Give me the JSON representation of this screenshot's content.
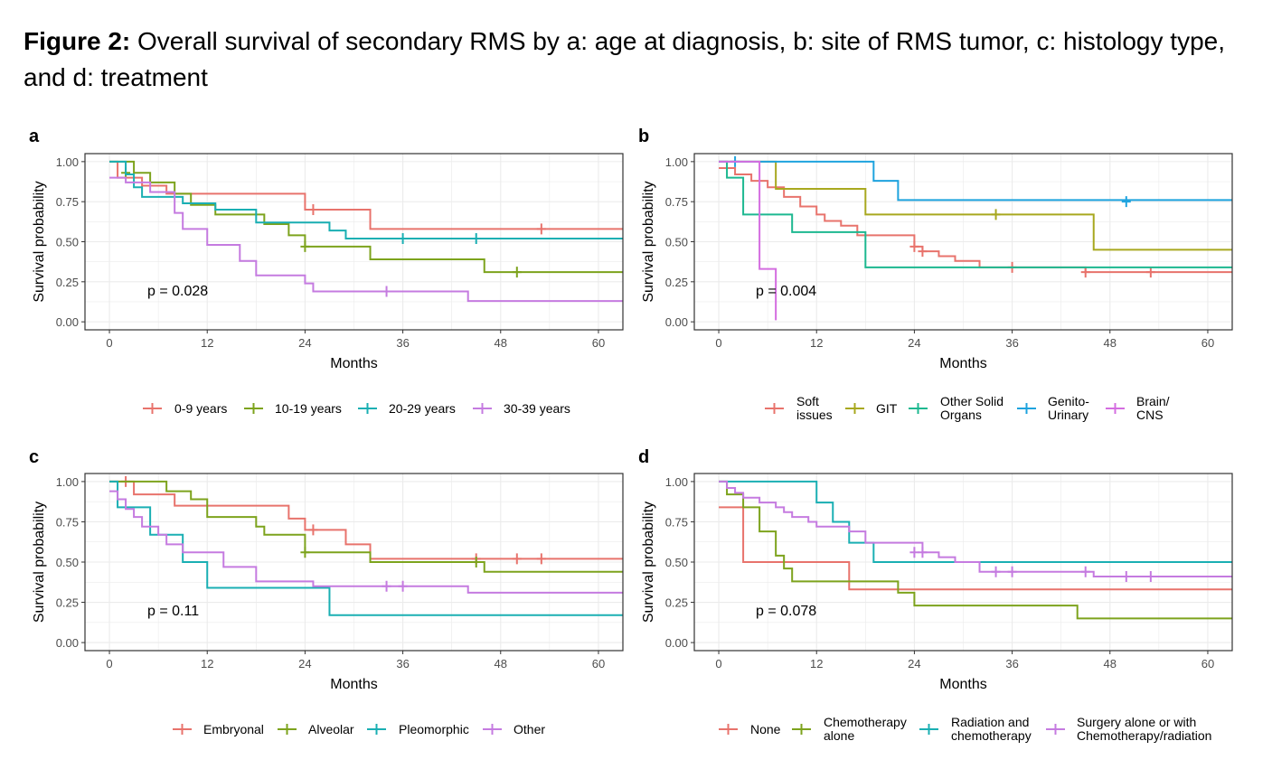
{
  "caption": {
    "label": "Figure 2:",
    "text": " Overall survival of secondary RMS by a: age at diagnosis, b: site of RMS tumor, c: histology type, and d: treatment"
  },
  "chart_data": [
    {
      "type": "line",
      "panel": "a",
      "xlabel": "Months",
      "ylabel": "Survival probability",
      "xlim": [
        -3,
        63
      ],
      "ylim": [
        -0.05,
        1.05
      ],
      "xticks": [
        "0",
        "12",
        "24",
        "36",
        "48",
        "60"
      ],
      "yticks": [
        "0.00",
        "0.25",
        "0.50",
        "0.75",
        "1.00"
      ],
      "grid": true,
      "pvalue": "p = 0.028",
      "legend_position": "bottom",
      "series": [
        {
          "name": "0-9 years",
          "color": "#E8736C",
          "steps": [
            [
              0,
              1.0
            ],
            [
              1,
              0.9
            ],
            [
              4,
              0.85
            ],
            [
              7,
              0.8
            ],
            [
              24,
              0.7
            ],
            [
              32,
              0.58
            ],
            [
              63,
              0.58
            ]
          ],
          "censor": [
            [
              25,
              0.7
            ],
            [
              53,
              0.58
            ]
          ]
        },
        {
          "name": "10-19 years",
          "color": "#7DA31D",
          "steps": [
            [
              0,
              1.0
            ],
            [
              3,
              0.93
            ],
            [
              5,
              0.87
            ],
            [
              8,
              0.8
            ],
            [
              10,
              0.73
            ],
            [
              13,
              0.67
            ],
            [
              19,
              0.61
            ],
            [
              22,
              0.54
            ],
            [
              24,
              0.47
            ],
            [
              32,
              0.39
            ],
            [
              46,
              0.31
            ],
            [
              63,
              0.31
            ]
          ],
          "censor": [
            [
              2,
              0.93
            ],
            [
              24,
              0.47
            ],
            [
              50,
              0.31
            ]
          ]
        },
        {
          "name": "20-29 years",
          "color": "#1AAFB3",
          "steps": [
            [
              0,
              1.0
            ],
            [
              2,
              0.92
            ],
            [
              3,
              0.84
            ],
            [
              4,
              0.78
            ],
            [
              8,
              0.78
            ],
            [
              9,
              0.74
            ],
            [
              13,
              0.7
            ],
            [
              18,
              0.62
            ],
            [
              27,
              0.57
            ],
            [
              29,
              0.52
            ],
            [
              63,
              0.52
            ]
          ],
          "censor": [
            [
              36,
              0.52
            ],
            [
              45,
              0.52
            ]
          ]
        },
        {
          "name": "30-39 years",
          "color": "#C57BE0",
          "steps": [
            [
              0,
              0.9
            ],
            [
              2,
              0.87
            ],
            [
              5,
              0.81
            ],
            [
              8,
              0.68
            ],
            [
              9,
              0.58
            ],
            [
              12,
              0.48
            ],
            [
              16,
              0.38
            ],
            [
              18,
              0.29
            ],
            [
              24,
              0.24
            ],
            [
              25,
              0.19
            ],
            [
              44,
              0.13
            ],
            [
              63,
              0.13
            ]
          ],
          "censor": [
            [
              34,
              0.19
            ]
          ]
        }
      ]
    },
    {
      "type": "line",
      "panel": "b",
      "xlabel": "Months",
      "ylabel": "Survival probability",
      "xlim": [
        -3,
        63
      ],
      "ylim": [
        -0.05,
        1.05
      ],
      "xticks": [
        "0",
        "12",
        "24",
        "36",
        "48",
        "60"
      ],
      "yticks": [
        "0.00",
        "0.25",
        "0.50",
        "0.75",
        "1.00"
      ],
      "grid": true,
      "pvalue": "p = 0.004",
      "legend_position": "bottom",
      "series": [
        {
          "name": "Soft issues",
          "color": "#E8736C",
          "steps": [
            [
              0,
              0.96
            ],
            [
              2,
              0.92
            ],
            [
              4,
              0.88
            ],
            [
              6,
              0.84
            ],
            [
              8,
              0.78
            ],
            [
              10,
              0.72
            ],
            [
              12,
              0.67
            ],
            [
              13,
              0.63
            ],
            [
              15,
              0.6
            ],
            [
              17,
              0.54
            ],
            [
              24,
              0.47
            ],
            [
              25,
              0.44
            ],
            [
              27,
              0.41
            ],
            [
              29,
              0.38
            ],
            [
              32,
              0.34
            ],
            [
              45,
              0.31
            ],
            [
              63,
              0.31
            ]
          ],
          "censor": [
            [
              24,
              0.47
            ],
            [
              25,
              0.44
            ],
            [
              36,
              0.34
            ],
            [
              45,
              0.31
            ],
            [
              53,
              0.31
            ]
          ]
        },
        {
          "name": "GIT",
          "color": "#A8A81F",
          "steps": [
            [
              0,
              1.0
            ],
            [
              7,
              0.83
            ],
            [
              18,
              0.67
            ],
            [
              46,
              0.45
            ],
            [
              63,
              0.45
            ]
          ],
          "censor": [
            [
              34,
              0.67
            ]
          ]
        },
        {
          "name": "Other Solid Organs",
          "color": "#1DB890",
          "steps": [
            [
              0,
              1.0
            ],
            [
              1,
              0.9
            ],
            [
              3,
              0.67
            ],
            [
              9,
              0.56
            ],
            [
              18,
              0.34
            ],
            [
              63,
              0.34
            ]
          ],
          "censor": []
        },
        {
          "name": "Genito-Urinary",
          "color": "#1EA3DE",
          "steps": [
            [
              0,
              1.0
            ],
            [
              19,
              0.88
            ],
            [
              22,
              0.76
            ],
            [
              63,
              0.76
            ]
          ],
          "censor": [
            [
              2,
              1.0
            ],
            [
              50,
              0.75
            ]
          ]
        },
        {
          "name": "Brain/ CNS",
          "color": "#D46DE0",
          "steps": [
            [
              0,
              1.0
            ],
            [
              5,
              0.33
            ],
            [
              7,
              0.01
            ]
          ],
          "censor": []
        }
      ]
    },
    {
      "type": "line",
      "panel": "c",
      "xlabel": "Months",
      "ylabel": "Survival probability",
      "xlim": [
        -3,
        63
      ],
      "ylim": [
        -0.05,
        1.05
      ],
      "xticks": [
        "0",
        "12",
        "24",
        "36",
        "48",
        "60"
      ],
      "yticks": [
        "0.00",
        "0.25",
        "0.50",
        "0.75",
        "1.00"
      ],
      "grid": true,
      "pvalue": "p = 0.11",
      "legend_position": "bottom",
      "series": [
        {
          "name": "Embryonal",
          "color": "#E8736C",
          "steps": [
            [
              0,
              1.0
            ],
            [
              3,
              0.92
            ],
            [
              8,
              0.85
            ],
            [
              22,
              0.77
            ],
            [
              24,
              0.7
            ],
            [
              29,
              0.61
            ],
            [
              32,
              0.52
            ],
            [
              63,
              0.52
            ]
          ],
          "censor": [
            [
              2,
              1.0
            ],
            [
              25,
              0.7
            ],
            [
              45,
              0.52
            ],
            [
              50,
              0.52
            ],
            [
              53,
              0.52
            ]
          ]
        },
        {
          "name": "Alveolar",
          "color": "#7DA31D",
          "steps": [
            [
              0,
              1.0
            ],
            [
              7,
              0.94
            ],
            [
              10,
              0.89
            ],
            [
              12,
              0.78
            ],
            [
              18,
              0.72
            ],
            [
              19,
              0.67
            ],
            [
              24,
              0.56
            ],
            [
              32,
              0.5
            ],
            [
              46,
              0.44
            ],
            [
              63,
              0.44
            ]
          ],
          "censor": [
            [
              24,
              0.56
            ],
            [
              45,
              0.5
            ]
          ]
        },
        {
          "name": "Pleomorphic",
          "color": "#1AAFB3",
          "steps": [
            [
              0,
              1.0
            ],
            [
              1,
              0.84
            ],
            [
              5,
              0.67
            ],
            [
              9,
              0.5
            ],
            [
              12,
              0.34
            ],
            [
              27,
              0.17
            ],
            [
              63,
              0.17
            ]
          ],
          "censor": []
        },
        {
          "name": "Other",
          "color": "#C57BE0",
          "steps": [
            [
              0,
              0.94
            ],
            [
              1,
              0.89
            ],
            [
              2,
              0.83
            ],
            [
              3,
              0.78
            ],
            [
              4,
              0.72
            ],
            [
              6,
              0.67
            ],
            [
              7,
              0.61
            ],
            [
              9,
              0.56
            ],
            [
              14,
              0.47
            ],
            [
              18,
              0.38
            ],
            [
              25,
              0.35
            ],
            [
              44,
              0.31
            ],
            [
              63,
              0.31
            ]
          ],
          "censor": [
            [
              34,
              0.35
            ],
            [
              36,
              0.35
            ]
          ]
        }
      ]
    },
    {
      "type": "line",
      "panel": "d",
      "xlabel": "Months",
      "ylabel": "Survival probability",
      "xlim": [
        -3,
        63
      ],
      "ylim": [
        -0.05,
        1.05
      ],
      "xticks": [
        "0",
        "12",
        "24",
        "36",
        "48",
        "60"
      ],
      "yticks": [
        "0.00",
        "0.25",
        "0.50",
        "0.75",
        "1.00"
      ],
      "grid": true,
      "pvalue": "p = 0.078",
      "legend_position": "bottom",
      "series": [
        {
          "name": "None",
          "color": "#E8736C",
          "steps": [
            [
              0,
              0.84
            ],
            [
              3,
              0.5
            ],
            [
              16,
              0.33
            ],
            [
              63,
              0.33
            ]
          ],
          "censor": []
        },
        {
          "name": "Chemotherapy alone",
          "color": "#7DA31D",
          "steps": [
            [
              0,
              1.0
            ],
            [
              1,
              0.92
            ],
            [
              3,
              0.84
            ],
            [
              5,
              0.69
            ],
            [
              7,
              0.54
            ],
            [
              8,
              0.46
            ],
            [
              9,
              0.38
            ],
            [
              22,
              0.31
            ],
            [
              24,
              0.23
            ],
            [
              44,
              0.15
            ],
            [
              63,
              0.15
            ]
          ],
          "censor": []
        },
        {
          "name": "Radiation and chemotherapy",
          "color": "#1AAFB3",
          "steps": [
            [
              0,
              1.0
            ],
            [
              12,
              0.87
            ],
            [
              14,
              0.75
            ],
            [
              16,
              0.62
            ],
            [
              19,
              0.5
            ],
            [
              63,
              0.5
            ]
          ],
          "censor": []
        },
        {
          "name": "Surgery alone or with Chemotherapy/radiation",
          "color": "#C57BE0",
          "steps": [
            [
              0,
              1.0
            ],
            [
              1,
              0.96
            ],
            [
              2,
              0.93
            ],
            [
              3,
              0.9
            ],
            [
              5,
              0.87
            ],
            [
              7,
              0.84
            ],
            [
              8,
              0.81
            ],
            [
              9,
              0.78
            ],
            [
              11,
              0.75
            ],
            [
              12,
              0.72
            ],
            [
              16,
              0.69
            ],
            [
              18,
              0.62
            ],
            [
              25,
              0.56
            ],
            [
              27,
              0.53
            ],
            [
              29,
              0.5
            ],
            [
              32,
              0.44
            ],
            [
              46,
              0.41
            ],
            [
              63,
              0.41
            ]
          ],
          "censor": [
            [
              24,
              0.56
            ],
            [
              25,
              0.56
            ],
            [
              34,
              0.44
            ],
            [
              36,
              0.44
            ],
            [
              45,
              0.44
            ],
            [
              50,
              0.41
            ],
            [
              53,
              0.41
            ]
          ]
        }
      ]
    }
  ]
}
